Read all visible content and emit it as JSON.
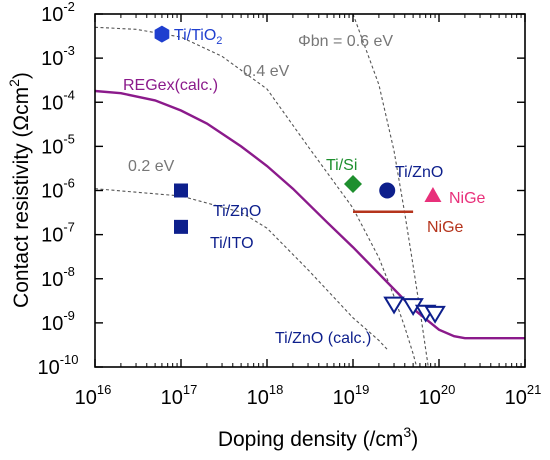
{
  "chart_data": {
    "type": "scatter",
    "xlabel": "Doping density (/cm",
    "xlabel_sup": "3",
    "xlabel_end": ")",
    "ylabel": "Contact resistivity (Ωcm",
    "ylabel_sup": "2",
    "ylabel_end": ")",
    "x_scale": "log",
    "y_scale": "log",
    "xlim": [
      1e+16,
      1e+21
    ],
    "ylim": [
      1e-10,
      0.01
    ],
    "x_ticks": [
      {
        "base": "10",
        "exp": "16",
        "value": 1e+16
      },
      {
        "base": "10",
        "exp": "17",
        "value": 1e+17
      },
      {
        "base": "10",
        "exp": "18",
        "value": 1e+18
      },
      {
        "base": "10",
        "exp": "19",
        "value": 1e+19
      },
      {
        "base": "10",
        "exp": "20",
        "value": 1e+20
      },
      {
        "base": "10",
        "exp": "21",
        "value": 1e+21
      }
    ],
    "y_ticks": [
      {
        "base": "10",
        "exp": "-2",
        "value": 0.01
      },
      {
        "base": "10",
        "exp": "-3",
        "value": 0.001
      },
      {
        "base": "10",
        "exp": "-4",
        "value": 0.0001
      },
      {
        "base": "10",
        "exp": "-5",
        "value": 1e-05
      },
      {
        "base": "10",
        "exp": "-6",
        "value": 1e-06
      },
      {
        "base": "10",
        "exp": "-7",
        "value": 1e-07
      },
      {
        "base": "10",
        "exp": "-8",
        "value": 1e-08
      },
      {
        "base": "10",
        "exp": "-9",
        "value": 1e-09
      },
      {
        "base": "10",
        "exp": "-10",
        "value": 1e-10
      }
    ],
    "theory_curves": [
      {
        "label": "0.2 eV",
        "color": "#555555",
        "points": [
          [
            1e+16,
            1.1e-06
          ],
          [
            1e+17,
            7.5e-07
          ],
          [
            5e+17,
            3.2e-07
          ],
          [
            1e+18,
            1.4e-07
          ],
          [
            3e+18,
            1.6e-08
          ],
          [
            1e+19,
            1.3e-09
          ],
          [
            2e+19,
            4e-10
          ],
          [
            2.5e+19,
            2.5e-10
          ]
        ]
      },
      {
        "label": "0.4 eV",
        "color": "#555555",
        "points": [
          [
            1e+16,
            0.005
          ],
          [
            3e+16,
            0.0045
          ],
          [
            1e+17,
            0.003
          ],
          [
            3e+17,
            0.0011
          ],
          [
            1e+18,
            0.0002
          ],
          [
            3e+18,
            1e-05
          ],
          [
            1e+19,
            4e-07
          ],
          [
            2e+19,
            3e-08
          ],
          [
            3e+19,
            4e-09
          ],
          [
            4e+19,
            8e-10
          ],
          [
            5e+19,
            2e-10
          ],
          [
            5.5e+19,
            1e-10
          ]
        ]
      },
      {
        "label": "Φbn = 0.6 eV",
        "color": "#555555",
        "points": [
          [
            1e+19,
            0.01
          ],
          [
            2e+19,
            0.00025
          ],
          [
            3e+19,
            8e-06
          ],
          [
            4e+19,
            3e-07
          ],
          [
            5e+19,
            2e-08
          ],
          [
            6e+19,
            2e-09
          ],
          [
            7e+19,
            2.5e-10
          ],
          [
            7.5e+19,
            1e-10
          ]
        ]
      }
    ],
    "regex_curve": {
      "label": "REGex(calc.)",
      "color": "#8B1A8B",
      "points": [
        [
          1e+16,
          0.00018
        ],
        [
          2e+16,
          0.00016
        ],
        [
          5e+16,
          0.00011
        ],
        [
          1e+17,
          6.5e-05
        ],
        [
          2e+17,
          3.3e-05
        ],
        [
          5e+17,
          1e-05
        ],
        [
          1e+18,
          3.6e-06
        ],
        [
          2e+18,
          1.1e-06
        ],
        [
          5e+18,
          1.9e-07
        ],
        [
          1e+19,
          5.2e-08
        ],
        [
          2e+19,
          1.3e-08
        ],
        [
          5e+19,
          2.1e-09
        ],
        [
          1e+20,
          7e-10
        ],
        [
          1.5e+20,
          5e-10
        ],
        [
          2e+20,
          4.5e-10
        ],
        [
          1e+21,
          4.5e-10
        ]
      ]
    },
    "series": [
      {
        "name": "Ti/TiO",
        "name_sub": "2",
        "marker": "hexagon",
        "color": "#1F3FCF",
        "x": [
          6e+16
        ],
        "y": [
          0.0035
        ]
      },
      {
        "name": "Ti/ZnO",
        "marker": "square",
        "color": "#0D1F8C",
        "x": [
          1e+17
        ],
        "y": [
          1e-06
        ]
      },
      {
        "name": "Ti/ITO",
        "marker": "square",
        "color": "#0D1F8C",
        "x": [
          1e+17
        ],
        "y": [
          1.5e-07
        ]
      },
      {
        "name": "Ti/Si",
        "marker": "diamond",
        "color": "#1E8F2E",
        "x": [
          1e+19
        ],
        "y": [
          1.4e-06
        ]
      },
      {
        "name": "Ti/ZnO",
        "marker": "circle",
        "color": "#0D1F8C",
        "x": [
          2.5e+19
        ],
        "y": [
          1e-06
        ]
      },
      {
        "name": "NiGe",
        "marker": "triangle",
        "color": "#E8307A",
        "x": [
          8.5e+19
        ],
        "y": [
          7.5e-07
        ]
      },
      {
        "name": "Ti/ZnO (calc.)",
        "marker": "triangle-down",
        "color": "#0D1F8C",
        "x": [
          3e+19,
          5e+19,
          7e+19,
          9e+19
        ],
        "y": [
          2.6e-09,
          2.4e-09,
          1.7e-09,
          1.6e-09
        ]
      }
    ],
    "nige_line": {
      "label": "NiGe",
      "color": "#B5341C",
      "x": [
        1e+19,
        5e+19
      ],
      "y": [
        3.3e-07,
        3.3e-07
      ]
    }
  }
}
